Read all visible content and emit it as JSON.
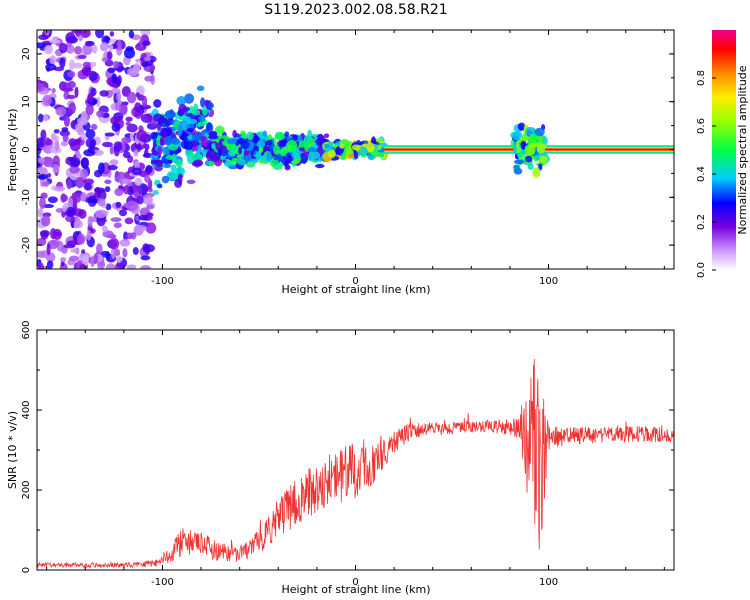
{
  "title": "S119.2023.002.08.58.R21",
  "chart_data": [
    {
      "type": "heatmap",
      "xlabel": "Height of straight line (km)",
      "ylabel": "Frequency (Hz)",
      "xlim": [
        -165,
        165
      ],
      "ylim": [
        -25,
        25
      ],
      "xticks": [
        -100,
        0,
        100
      ],
      "xtick_labels": [
        "-100",
        "0",
        "100"
      ],
      "yticks": [
        -20,
        -10,
        0,
        10,
        20
      ],
      "ytick_labels": [
        "-20",
        "-10",
        "0",
        "10",
        "20"
      ],
      "colorbar": {
        "label": "Normalized spectral amplitude",
        "range": [
          0,
          1
        ],
        "ticks": [
          0.0,
          0.2,
          0.4,
          0.6,
          0.8
        ],
        "tick_labels": [
          "0.0",
          "0.2",
          "0.4",
          "0.6",
          "0.8"
        ]
      },
      "features": [
        {
          "x_range": [
            -165,
            -105
          ],
          "freq_range": [
            -25,
            25
          ],
          "amplitude": 0.15
        },
        {
          "x_range": [
            -105,
            -75
          ],
          "freq_center": 0,
          "freq_spread": 8,
          "amplitude": 0.3
        },
        {
          "x_range": [
            -75,
            -15
          ],
          "freq_center": 0,
          "freq_spread": 3,
          "amplitude": 0.35
        },
        {
          "x_range": [
            -15,
            15
          ],
          "freq_center": 0,
          "freq_spread": 1.5,
          "amplitude": 0.5
        },
        {
          "x_range": [
            15,
            165
          ],
          "freq_center": 0,
          "freq_spread": 0.5,
          "amplitude": 0.95
        },
        {
          "x_range": [
            82,
            98
          ],
          "freq_center": 0,
          "freq_spread": 4,
          "amplitude": 0.4
        }
      ],
      "grid": false
    },
    {
      "type": "line",
      "xlabel": "Height of straight line (km)",
      "ylabel": "SNR (10 * v/v)",
      "xlim": [
        -165,
        165
      ],
      "ylim": [
        0,
        600
      ],
      "xticks": [
        -100,
        0,
        100
      ],
      "xtick_labels": [
        "-100",
        "0",
        "100"
      ],
      "yticks": [
        0,
        200,
        400,
        600
      ],
      "ytick_labels": [
        "0",
        "200",
        "400",
        "600"
      ],
      "color": "#ee3333",
      "envelope": {
        "x": [
          -165,
          -120,
          -100,
          -95,
          -90,
          -80,
          -70,
          -60,
          -50,
          -40,
          -30,
          -20,
          -10,
          0,
          10,
          20,
          30,
          50,
          70,
          85,
          88,
          92,
          96,
          100,
          110,
          130,
          150,
          165
        ],
        "mean": [
          12,
          12,
          20,
          50,
          70,
          65,
          45,
          40,
          70,
          130,
          170,
          210,
          230,
          250,
          270,
          320,
          350,
          355,
          360,
          355,
          340,
          300,
          260,
          330,
          335,
          338,
          340,
          335
        ],
        "amp": [
          6,
          6,
          12,
          30,
          35,
          30,
          25,
          20,
          30,
          50,
          60,
          65,
          70,
          70,
          60,
          30,
          20,
          15,
          15,
          25,
          150,
          260,
          230,
          30,
          22,
          20,
          20,
          20
        ]
      },
      "grid": false
    }
  ]
}
